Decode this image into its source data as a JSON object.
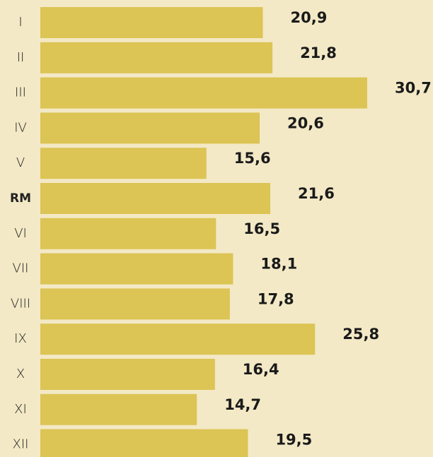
{
  "chart_data": {
    "type": "bar",
    "orientation": "horizontal",
    "categories": [
      "I",
      "II",
      "III",
      "IV",
      "V",
      "RM",
      "VI",
      "VII",
      "VIII",
      "IX",
      "X",
      "XI",
      "XII"
    ],
    "values": [
      20.9,
      21.8,
      30.7,
      20.6,
      15.6,
      21.6,
      16.5,
      18.1,
      17.8,
      25.8,
      16.4,
      14.7,
      19.5
    ],
    "value_labels": [
      "20,9",
      "21,8",
      "30,7",
      "20,6",
      "15,6",
      "21,6",
      "16,5",
      "18,1",
      "17,8",
      "25,8",
      "16,4",
      "14,7",
      "19,5"
    ],
    "color": "#dcc455",
    "bold_category_index": 5
  }
}
